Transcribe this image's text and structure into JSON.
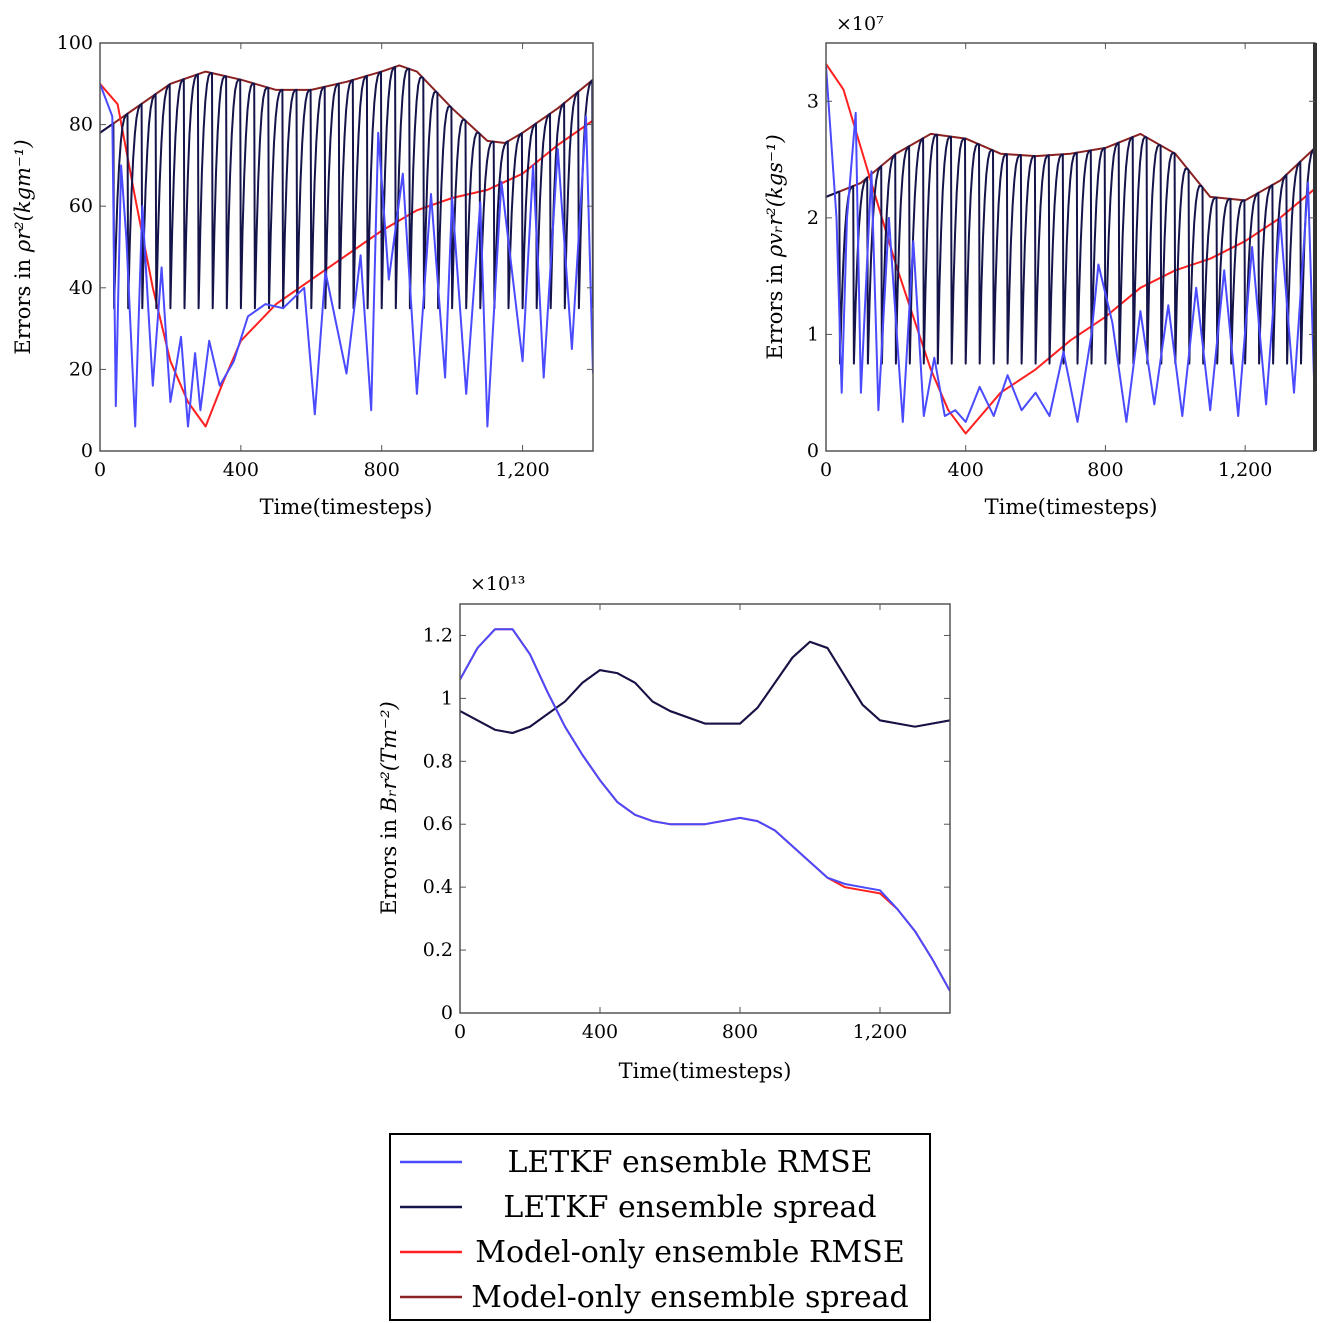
{
  "legend": [
    {
      "label": "LETKF ensemble RMSE",
      "color": "#4a4aff"
    },
    {
      "label": "LETKF ensemble spread",
      "color": "#14144a"
    },
    {
      "label": "Model-only ensemble RMSE",
      "color": "#ff2020"
    },
    {
      "label": "Model-only ensemble spread",
      "color": "#8a2222"
    }
  ],
  "chart_data": [
    {
      "type": "line",
      "xlabel": "Time(timesteps)",
      "ylabel_prefix": "Errors in ",
      "ylabel_math": "ρr²(kgm⁻¹)",
      "multiplier": "",
      "xlim": [
        0,
        1400
      ],
      "ylim": [
        0,
        100
      ],
      "xticks": [
        0,
        400,
        800,
        1200
      ],
      "xtick_labels": [
        "0",
        "400",
        "800",
        "1,200"
      ],
      "yticks": [
        0,
        20,
        40,
        60,
        80,
        100
      ],
      "ytick_labels": [
        "0",
        "20",
        "40",
        "60",
        "80",
        "100"
      ],
      "grid": false,
      "series": [
        {
          "name": "Model-only ensemble spread",
          "color": "#8a2222",
          "x": [
            0,
            100,
            200,
            300,
            400,
            500,
            600,
            700,
            800,
            850,
            900,
            1000,
            1100,
            1150,
            1200,
            1300,
            1400
          ],
          "y": [
            78,
            84,
            90,
            93,
            91,
            88.5,
            88.5,
            90.5,
            93,
            94.5,
            93,
            84,
            76,
            75.5,
            78,
            84,
            91
          ]
        },
        {
          "name": "Model-only ensemble RMSE",
          "color": "#ff2020",
          "x": [
            0,
            50,
            100,
            150,
            200,
            250,
            300,
            350,
            400,
            500,
            600,
            700,
            800,
            900,
            1000,
            1100,
            1200,
            1300,
            1400
          ],
          "y": [
            90,
            85,
            62,
            40,
            22,
            12,
            6,
            17,
            27,
            36,
            42,
            48,
            54,
            59,
            62,
            64,
            68,
            75,
            81
          ]
        },
        {
          "name": "LETKF ensemble spread",
          "color": "#14144a",
          "sawtooth_low": 35,
          "x": [
            0,
            100,
            200,
            300,
            400,
            500,
            600,
            700,
            800,
            850,
            900,
            1000,
            1100,
            1150,
            1200,
            1300,
            1400
          ],
          "y": [
            78,
            84,
            90,
            93,
            91,
            88.5,
            88.5,
            90.5,
            93,
            94.5,
            93,
            84,
            76,
            75.5,
            78,
            84,
            91
          ]
        },
        {
          "name": "LETKF ensemble RMSE",
          "color": "#4a4aff",
          "x": [
            0,
            35,
            45,
            60,
            75,
            100,
            120,
            150,
            175,
            200,
            230,
            250,
            270,
            285,
            310,
            340,
            380,
            420,
            470,
            520,
            580,
            610,
            640,
            700,
            740,
            770,
            790,
            820,
            860,
            900,
            940,
            980,
            1000,
            1040,
            1080,
            1100,
            1140,
            1200,
            1230,
            1260,
            1300,
            1340,
            1380,
            1400
          ],
          "y": [
            90,
            82,
            11,
            70,
            52,
            6,
            60,
            16,
            45,
            12,
            28,
            6,
            24,
            10,
            27,
            16,
            22,
            33,
            36,
            35,
            40,
            9,
            44,
            19,
            48,
            10,
            78,
            42,
            68,
            14,
            63,
            18,
            62,
            14,
            61,
            6,
            66,
            22,
            70,
            18,
            74,
            25,
            82,
            19
          ]
        }
      ]
    },
    {
      "type": "line",
      "xlabel": "Time(timesteps)",
      "ylabel_prefix": "Errors in ",
      "ylabel_math": "ρvᵣr²(kgs⁻¹)",
      "multiplier": "×10⁷",
      "xlim": [
        0,
        1400
      ],
      "ylim": [
        0,
        3.5
      ],
      "xticks": [
        0,
        400,
        800,
        1200
      ],
      "xtick_labels": [
        "0",
        "400",
        "800",
        "1,200"
      ],
      "yticks": [
        0,
        1,
        2,
        3
      ],
      "ytick_labels": [
        "0",
        "1",
        "2",
        "3"
      ],
      "grid": false,
      "series": [
        {
          "name": "Model-only ensemble spread",
          "color": "#8a2222",
          "x": [
            0,
            100,
            200,
            300,
            400,
            500,
            600,
            700,
            800,
            900,
            1000,
            1100,
            1200,
            1300,
            1400
          ],
          "y": [
            2.18,
            2.3,
            2.55,
            2.72,
            2.68,
            2.55,
            2.53,
            2.55,
            2.6,
            2.72,
            2.55,
            2.18,
            2.15,
            2.32,
            2.6
          ]
        },
        {
          "name": "Model-only ensemble RMSE",
          "color": "#ff2020",
          "x": [
            0,
            50,
            100,
            150,
            200,
            250,
            300,
            350,
            400,
            500,
            600,
            700,
            800,
            900,
            1000,
            1100,
            1200,
            1300,
            1400
          ],
          "y": [
            3.32,
            3.1,
            2.6,
            2.1,
            1.6,
            1.15,
            0.7,
            0.35,
            0.15,
            0.5,
            0.7,
            0.95,
            1.15,
            1.4,
            1.55,
            1.65,
            1.8,
            2.0,
            2.25
          ]
        },
        {
          "name": "LETKF ensemble spread",
          "color": "#14144a",
          "sawtooth_low": 0.75,
          "x": [
            0,
            100,
            200,
            300,
            400,
            500,
            600,
            700,
            800,
            900,
            1000,
            1100,
            1200,
            1300,
            1400
          ],
          "y": [
            2.18,
            2.3,
            2.55,
            2.72,
            2.68,
            2.55,
            2.53,
            2.55,
            2.6,
            2.72,
            2.55,
            2.18,
            2.15,
            2.32,
            2.6
          ]
        },
        {
          "name": "LETKF ensemble RMSE",
          "color": "#4a4aff",
          "x": [
            0,
            30,
            45,
            60,
            85,
            100,
            130,
            150,
            180,
            220,
            250,
            280,
            310,
            340,
            370,
            400,
            440,
            480,
            520,
            560,
            600,
            640,
            680,
            720,
            760,
            780,
            820,
            860,
            900,
            940,
            980,
            1020,
            1060,
            1100,
            1140,
            1180,
            1220,
            1260,
            1300,
            1340,
            1380,
            1400
          ],
          "y": [
            3.3,
            2.0,
            0.5,
            2.0,
            2.9,
            0.5,
            2.4,
            0.35,
            2.0,
            0.25,
            1.8,
            0.3,
            0.8,
            0.3,
            0.35,
            0.25,
            0.55,
            0.3,
            0.65,
            0.35,
            0.5,
            0.3,
            0.85,
            0.25,
            1.0,
            1.6,
            1.1,
            0.25,
            1.2,
            0.4,
            1.25,
            0.3,
            1.4,
            0.35,
            1.55,
            0.3,
            1.75,
            0.4,
            2.0,
            0.5,
            2.3,
            0.35
          ]
        }
      ]
    },
    {
      "type": "line",
      "xlabel": "Time(timesteps)",
      "ylabel_prefix": "Errors in ",
      "ylabel_math": "Bᵣr²(Tm⁻²)",
      "multiplier": "×10¹³",
      "xlim": [
        0,
        1400
      ],
      "ylim": [
        0,
        1.3
      ],
      "xticks": [
        0,
        400,
        800,
        1200
      ],
      "xtick_labels": [
        "0",
        "400",
        "800",
        "1,200"
      ],
      "yticks": [
        0,
        0.2,
        0.4,
        0.6,
        0.8,
        1,
        1.2
      ],
      "ytick_labels": [
        "0",
        "0.2",
        "0.4",
        "0.6",
        "0.8",
        "1",
        "1.2"
      ],
      "grid": false,
      "series": [
        {
          "name": "Model-only ensemble spread",
          "color": "#8a2222",
          "x": [
            0,
            50,
            100,
            150,
            200,
            250,
            300,
            350,
            400,
            450,
            500,
            550,
            600,
            700,
            800,
            850,
            900,
            950,
            1000,
            1050,
            1100,
            1150,
            1200,
            1300,
            1400
          ],
          "y": [
            0.96,
            0.93,
            0.9,
            0.89,
            0.91,
            0.95,
            0.99,
            1.05,
            1.09,
            1.08,
            1.05,
            0.99,
            0.96,
            0.92,
            0.92,
            0.97,
            1.05,
            1.13,
            1.18,
            1.16,
            1.07,
            0.98,
            0.93,
            0.91,
            0.93
          ]
        },
        {
          "name": "Model-only ensemble RMSE",
          "color": "#ff2020",
          "x": [
            0,
            50,
            100,
            150,
            200,
            250,
            300,
            350,
            400,
            450,
            500,
            550,
            600,
            700,
            800,
            850,
            900,
            950,
            1000,
            1050,
            1100,
            1150,
            1200,
            1250,
            1300,
            1350,
            1400
          ],
          "y": [
            1.06,
            1.16,
            1.22,
            1.22,
            1.14,
            1.02,
            0.91,
            0.82,
            0.74,
            0.67,
            0.63,
            0.61,
            0.6,
            0.6,
            0.62,
            0.61,
            0.58,
            0.53,
            0.48,
            0.43,
            0.4,
            0.39,
            0.38,
            0.33,
            0.26,
            0.17,
            0.07
          ]
        },
        {
          "name": "LETKF ensemble spread",
          "color": "#14144a",
          "x": [
            0,
            50,
            100,
            150,
            200,
            250,
            300,
            350,
            400,
            450,
            500,
            550,
            600,
            700,
            800,
            850,
            900,
            950,
            1000,
            1050,
            1100,
            1150,
            1200,
            1300,
            1400
          ],
          "y": [
            0.96,
            0.93,
            0.9,
            0.89,
            0.91,
            0.95,
            0.99,
            1.05,
            1.09,
            1.08,
            1.05,
            0.99,
            0.96,
            0.92,
            0.92,
            0.97,
            1.05,
            1.13,
            1.18,
            1.16,
            1.07,
            0.98,
            0.93,
            0.91,
            0.93
          ]
        },
        {
          "name": "LETKF ensemble RMSE",
          "color": "#4a4aff",
          "x": [
            0,
            50,
            100,
            150,
            200,
            250,
            300,
            350,
            400,
            450,
            500,
            550,
            600,
            700,
            800,
            850,
            900,
            950,
            1000,
            1050,
            1100,
            1150,
            1200,
            1250,
            1300,
            1350,
            1400
          ],
          "y": [
            1.06,
            1.16,
            1.22,
            1.22,
            1.14,
            1.02,
            0.91,
            0.82,
            0.74,
            0.67,
            0.63,
            0.61,
            0.6,
            0.6,
            0.62,
            0.61,
            0.58,
            0.53,
            0.48,
            0.43,
            0.41,
            0.4,
            0.39,
            0.33,
            0.26,
            0.17,
            0.07
          ]
        }
      ]
    }
  ]
}
